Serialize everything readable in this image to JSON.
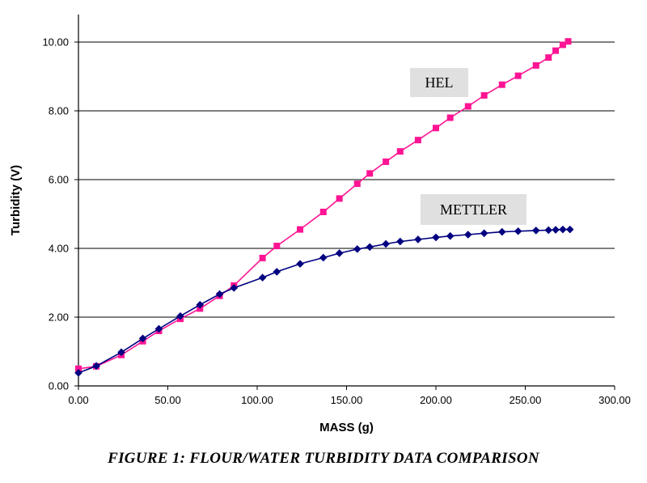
{
  "chart_data": {
    "type": "line",
    "title": "",
    "xlabel": "MASS (g)",
    "ylabel": "Turbidity (V)",
    "xlim": [
      0,
      300
    ],
    "ylim": [
      0,
      10.8
    ],
    "xticks": [
      0,
      50,
      100,
      150,
      200,
      250,
      300
    ],
    "yticks": [
      0,
      2,
      4,
      6,
      8,
      10
    ],
    "xtick_labels": [
      "0.00",
      "50.00",
      "100.00",
      "150.00",
      "200.00",
      "250.00",
      "300.00"
    ],
    "ytick_labels": [
      "0.00",
      "2.00",
      "4.00",
      "6.00",
      "8.00",
      "10.00"
    ],
    "grid": "horizontal",
    "series": [
      {
        "name": "HEL",
        "color": "#ff1493",
        "marker": "square",
        "points": [
          [
            0,
            0.5
          ],
          [
            10,
            0.57
          ],
          [
            24,
            0.9
          ],
          [
            36,
            1.3
          ],
          [
            45,
            1.6
          ],
          [
            57,
            1.95
          ],
          [
            68,
            2.25
          ],
          [
            79,
            2.62
          ],
          [
            87,
            2.92
          ],
          [
            103,
            3.72
          ],
          [
            111,
            4.07
          ],
          [
            124,
            4.55
          ],
          [
            137,
            5.06
          ],
          [
            146,
            5.45
          ],
          [
            156,
            5.88
          ],
          [
            163,
            6.18
          ],
          [
            172,
            6.52
          ],
          [
            180,
            6.82
          ],
          [
            190,
            7.15
          ],
          [
            200,
            7.5
          ],
          [
            208,
            7.8
          ],
          [
            218,
            8.13
          ],
          [
            227,
            8.45
          ],
          [
            237,
            8.76
          ],
          [
            246,
            9.02
          ],
          [
            256,
            9.32
          ],
          [
            263,
            9.55
          ],
          [
            267,
            9.75
          ],
          [
            271,
            9.92
          ],
          [
            274,
            10.02
          ]
        ]
      },
      {
        "name": "METTLER",
        "color": "#000080",
        "marker": "diamond",
        "points": [
          [
            0,
            0.38
          ],
          [
            10,
            0.58
          ],
          [
            24,
            0.98
          ],
          [
            36,
            1.38
          ],
          [
            45,
            1.66
          ],
          [
            57,
            2.03
          ],
          [
            68,
            2.36
          ],
          [
            79,
            2.67
          ],
          [
            87,
            2.85
          ],
          [
            103,
            3.15
          ],
          [
            111,
            3.32
          ],
          [
            124,
            3.55
          ],
          [
            137,
            3.73
          ],
          [
            146,
            3.86
          ],
          [
            156,
            3.98
          ],
          [
            163,
            4.04
          ],
          [
            172,
            4.13
          ],
          [
            180,
            4.2
          ],
          [
            190,
            4.26
          ],
          [
            200,
            4.32
          ],
          [
            208,
            4.36
          ],
          [
            218,
            4.4
          ],
          [
            227,
            4.44
          ],
          [
            237,
            4.48
          ],
          [
            246,
            4.5
          ],
          [
            256,
            4.52
          ],
          [
            263,
            4.53
          ],
          [
            267,
            4.54
          ],
          [
            271,
            4.55
          ],
          [
            275,
            4.55
          ]
        ]
      }
    ],
    "series_labels": [
      "HEL",
      "METTLER"
    ]
  },
  "caption": "FIGURE 1: FLOUR/WATER TURBIDITY DATA COMPARISON"
}
